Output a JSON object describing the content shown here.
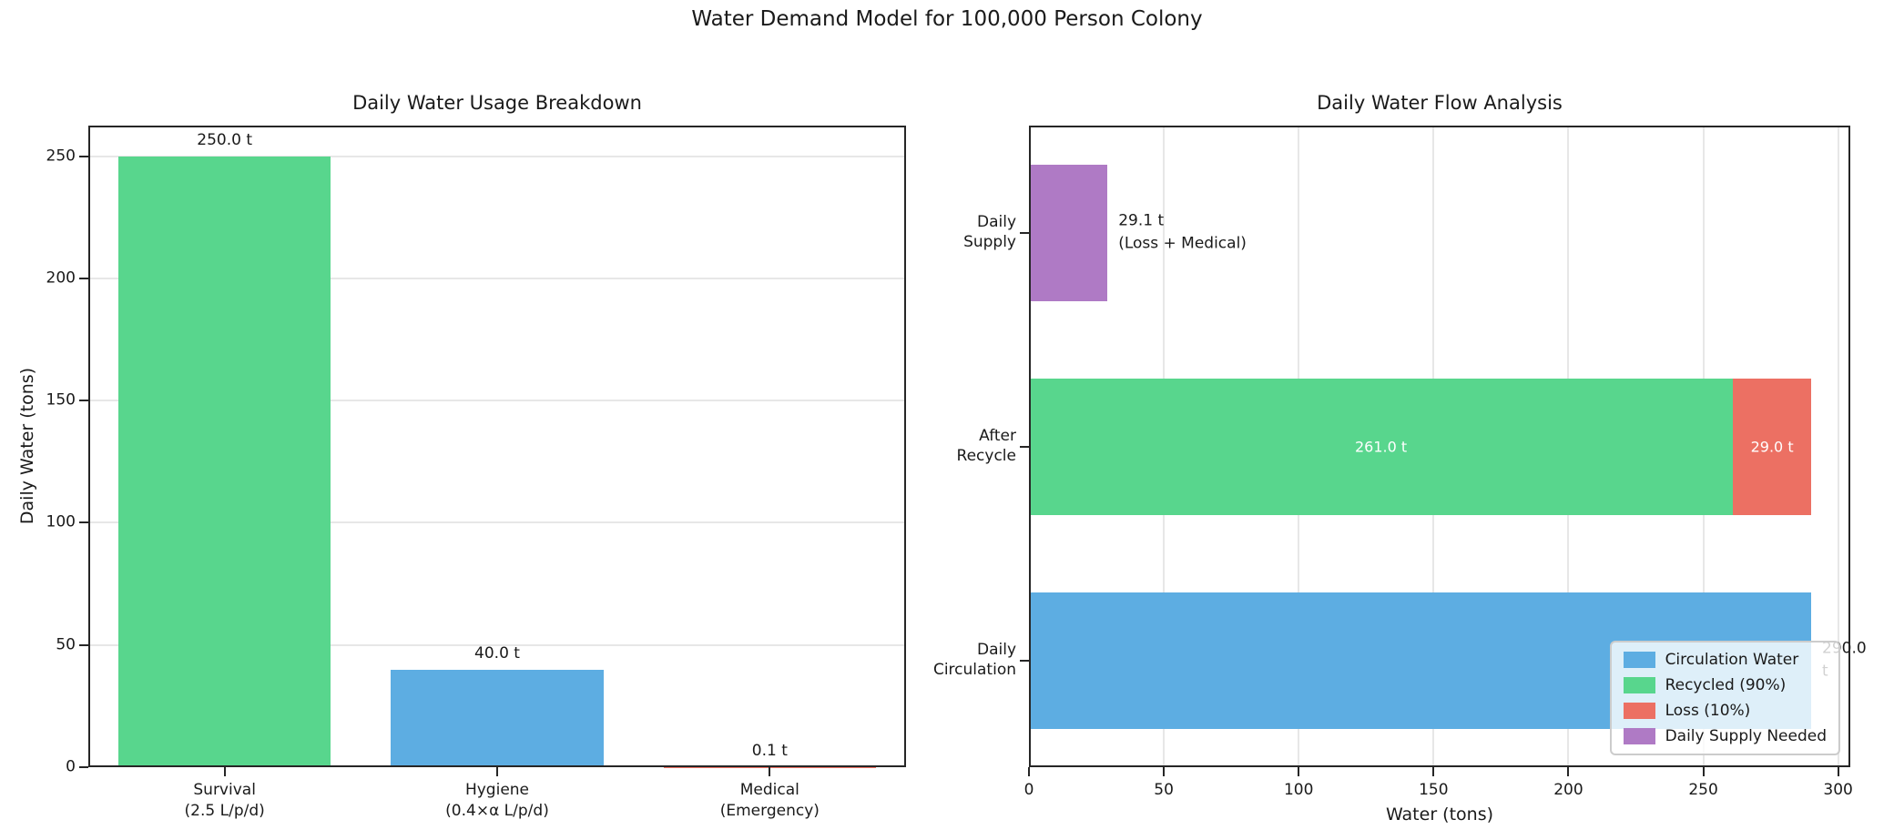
{
  "figure_title": "Water Demand Model for 100,000 Person Colony",
  "palette": {
    "blue": "#5DADE2",
    "green": "#58D68D",
    "red": "#EC7063",
    "purple": "#AF7AC5",
    "grid": "#E7E7E7",
    "spine": "#262626",
    "text": "#1a1a1a"
  },
  "chart_data": [
    {
      "type": "bar",
      "title": "Daily Water Usage Breakdown",
      "ylabel": "Daily Water (tons)",
      "xlabel": "",
      "ylim": [
        0,
        262.5
      ],
      "yticks": [
        0,
        50,
        100,
        150,
        200,
        250
      ],
      "grid": "horizontal",
      "categories": [
        "Survival\n(2.5 L/p/d)",
        "Hygiene\n(0.4×α L/p/d)",
        "Medical\n(Emergency)"
      ],
      "values": [
        250.0,
        40.0,
        0.1
      ],
      "bar_labels": [
        "250.0 t",
        "40.0 t",
        "0.1 t"
      ],
      "bar_colors": [
        "green",
        "blue",
        "red"
      ]
    },
    {
      "type": "stacked-barh",
      "title": "Daily Water Flow Analysis",
      "xlabel": "Water (tons)",
      "xlim": [
        0,
        304.5
      ],
      "xticks": [
        0,
        50,
        100,
        150,
        200,
        250,
        300
      ],
      "grid": "vertical",
      "categories": [
        "Daily\nSupply",
        "After\nRecycle",
        "Daily\nCirculation"
      ],
      "rows": [
        {
          "name": "Daily Supply",
          "segments": [
            {
              "value": 29.1,
              "color": "purple",
              "label": ""
            }
          ],
          "annotation": "29.1 t\n(Loss + Medical)"
        },
        {
          "name": "After Recycle",
          "segments": [
            {
              "value": 261.0,
              "color": "green",
              "label": "261.0 t"
            },
            {
              "value": 29.0,
              "color": "red",
              "label": "29.0 t"
            }
          ],
          "annotation": ""
        },
        {
          "name": "Daily Circulation",
          "segments": [
            {
              "value": 290.0,
              "color": "blue",
              "label": ""
            }
          ],
          "annotation": "290.0 t"
        }
      ],
      "legend": {
        "position": "lower right",
        "entries": [
          {
            "label": "Circulation Water",
            "color": "blue"
          },
          {
            "label": "Recycled (90%)",
            "color": "green"
          },
          {
            "label": "Loss (10%)",
            "color": "red"
          },
          {
            "label": "Daily Supply Needed",
            "color": "purple"
          }
        ]
      }
    }
  ]
}
